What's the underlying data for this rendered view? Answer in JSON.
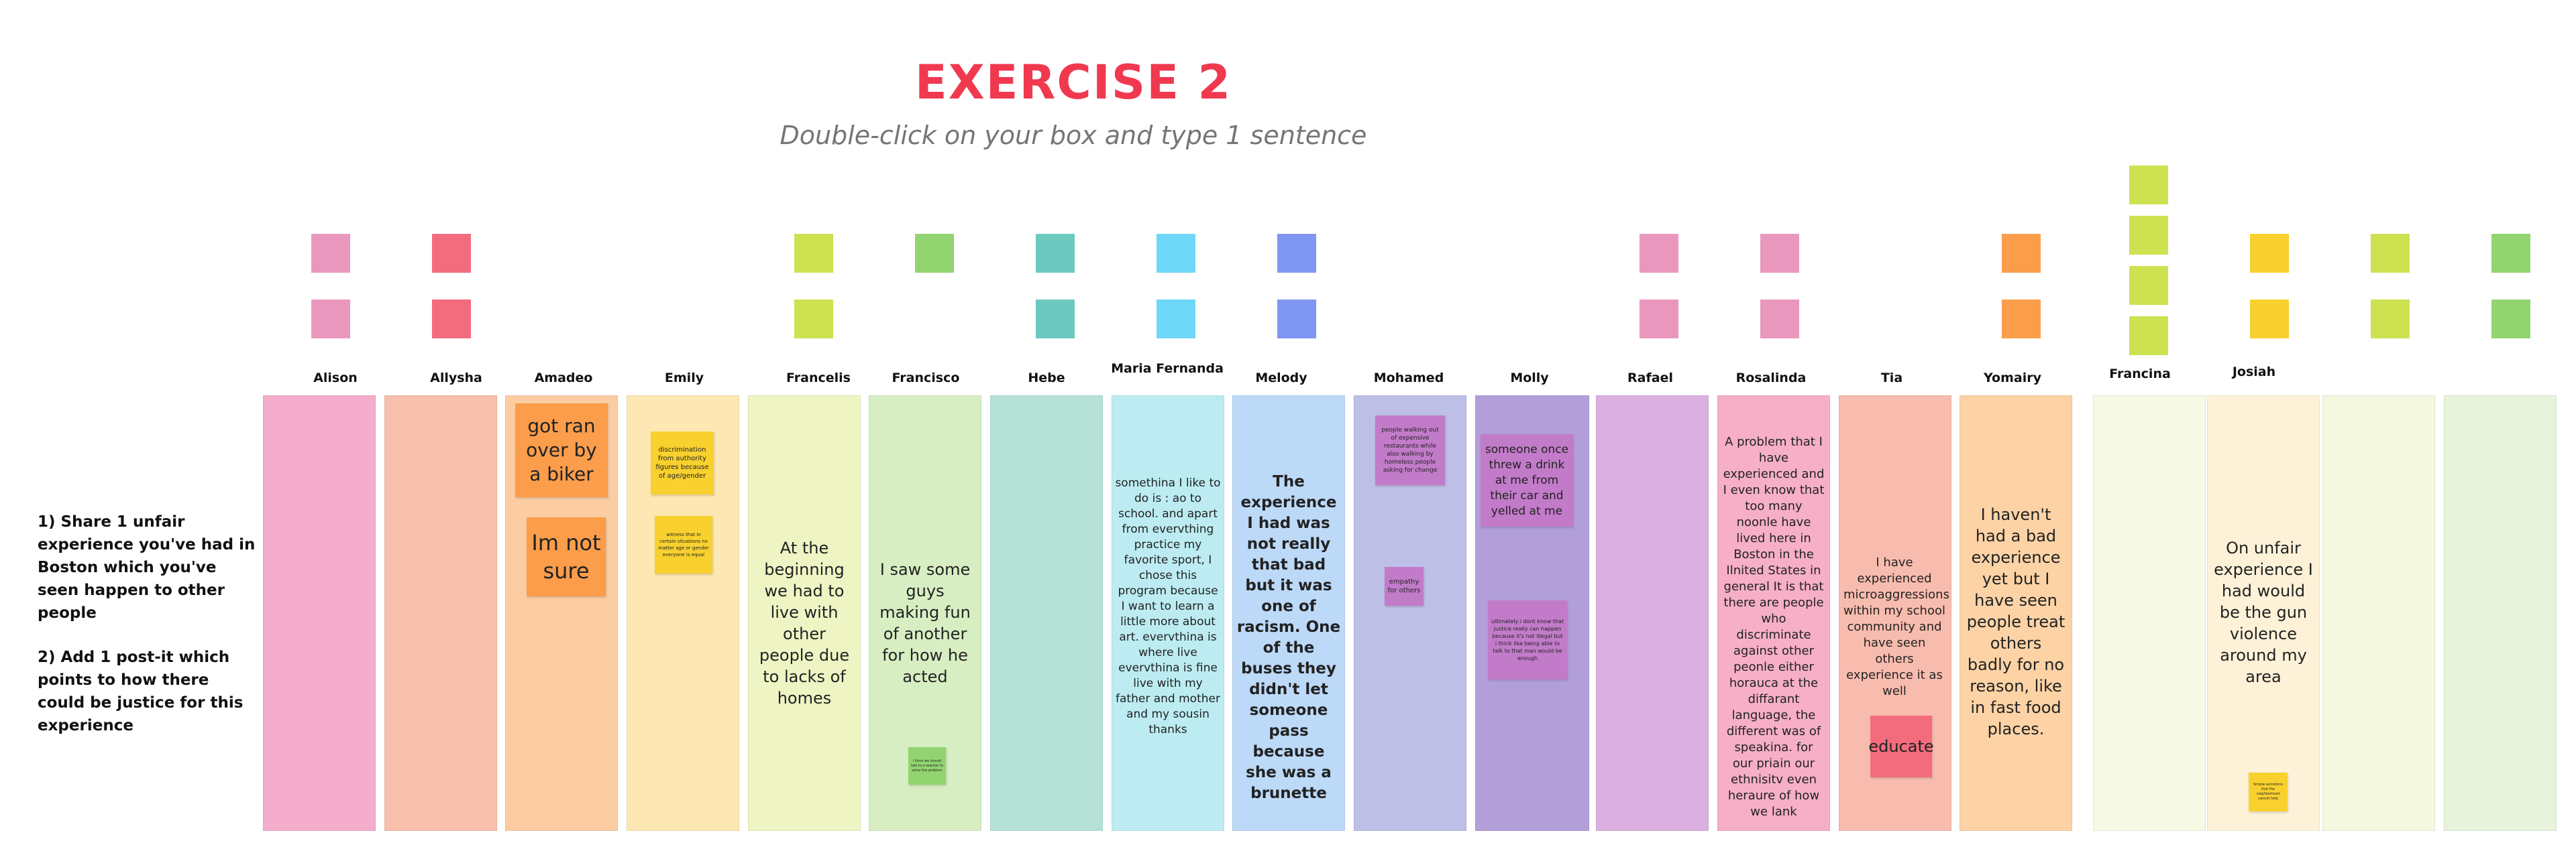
{
  "header": {
    "title": "EXERCISE  2",
    "subtitle": "Double-click on your box and type 1 sentence"
  },
  "instructions": {
    "step1": "1) Share 1 unfair experience you've had in Boston which you've seen happen to other people",
    "step2": "2) Add 1 post-it which points to how there could be justice for this experience"
  },
  "colors": {
    "pink": "#f4a7c4",
    "salmon": "#f8b9a9",
    "orange": "#fbcf9e",
    "yellow": "#fce7b1",
    "lime": "#eef3c2",
    "green": "#d6ecbe",
    "teal": "#b4e0d6",
    "cyan": "#b8ebf1",
    "blue": "#b8d7f8",
    "periwinkle": "#bcbde5",
    "purple": "#b09ad8",
    "violet": "#d9aee0",
    "accent_title": "#f0394f"
  },
  "participants": [
    {
      "name": "Alison",
      "text": ""
    },
    {
      "name": "Allysha",
      "text": ""
    },
    {
      "name": "Amadeo",
      "text": ""
    },
    {
      "name": "Emily",
      "text": ""
    },
    {
      "name": "Francelis",
      "text": "At the beginning we had to live with other people due to lacks of homes"
    },
    {
      "name": "Francisco",
      "text": "I saw some guys making fun of another for how he acted"
    },
    {
      "name": "Hebe",
      "text": ""
    },
    {
      "name": "Maria Fernanda",
      "text": "somethina I like to do is : ao to school. and apart from evervthing practice my favorite sport, I chose this program because I want to learn a little more about art. evervthina is where live evervthina is fine live with my father and mother and my sousin thanks"
    },
    {
      "name": "Melody",
      "text": "The experience I had was not really that bad but it was one of racism. One of the buses they didn't let someone pass because she was a brunette"
    },
    {
      "name": "Mohamed",
      "text": ""
    },
    {
      "name": "Molly",
      "text": ""
    },
    {
      "name": "Rafael",
      "text": ""
    },
    {
      "name": "Rosalinda",
      "text": "A problem that I have experienced and I even know that too many noonle have lived here in Boston in the Ilnited States in general It is that there are people who discriminate against other peonle either horauca at the diffarant language, the different was of speakina. for our priain our ethnisitv even heraure of how we lank"
    },
    {
      "name": "Tia",
      "text": "I have experienced microaggressions within my school community and have seen others experience it as well"
    },
    {
      "name": "Yomairy",
      "text": "I haven't had a bad experience yet but I have seen people treat others badly for no reason, like in fast food places."
    },
    {
      "name": "Francina",
      "text": ""
    },
    {
      "name": "Josiah",
      "text": "On unfair experience I had would be the gun violence around my area"
    }
  ],
  "notes": {
    "amadeo_1": "got ran over by a biker",
    "amadeo_2": "Im not sure",
    "emily_1": "discrimination from authority figures because of age/gender",
    "emily_2": "witness that in certain situations no matter age or gender everyone is equal",
    "francisco_1": "i think we should talk to a teacher to solve the problem",
    "mohamed_1": "people walking out of expensive restaurants while also walking by homeless people asking for change",
    "mohamed_2": "empathy for others",
    "molly_1": "someone once threw a drink at me from their car and yelled at me",
    "molly_2": "ultimately i dont know that justice really can happen because it's not illegal but i think like being able to talk to that man would be enough",
    "tia_1": "educate",
    "josiah_1": "Simple secretions that the neighborhood cannot help"
  }
}
